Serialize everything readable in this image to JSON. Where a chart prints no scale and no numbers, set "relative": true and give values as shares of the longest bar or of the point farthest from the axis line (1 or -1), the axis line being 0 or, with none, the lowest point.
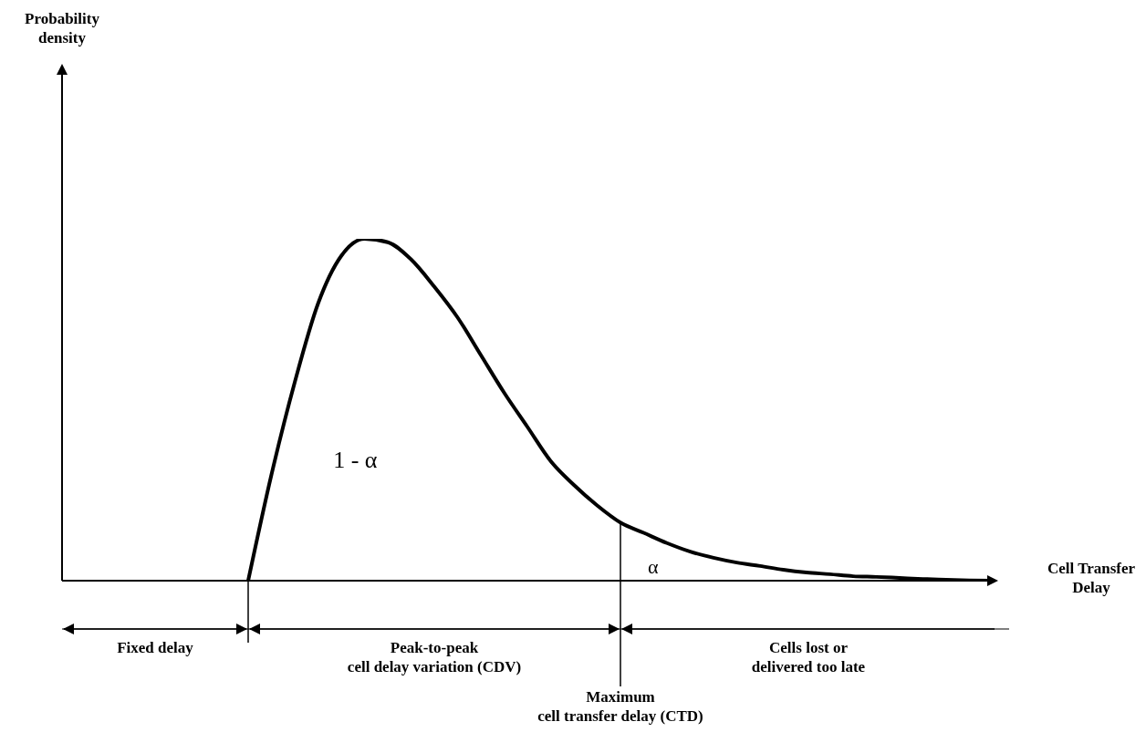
{
  "chart_data": {
    "type": "line",
    "relative": true,
    "xlabel": "Cell Transfer Delay",
    "categories": [
      null,
      null,
      null,
      null,
      null,
      null,
      null,
      null,
      null,
      null,
      null,
      null,
      null,
      null,
      null,
      null,
      null,
      null,
      null,
      null,
      null,
      null,
      null,
      null,
      null,
      null,
      null,
      null,
      null,
      null,
      null,
      null,
      null,
      null,
      null,
      null,
      null,
      null,
      null,
      null,
      null
    ],
    "series": [
      {
        "color": "#000000",
        "values": [
          null,
          null,
          null,
          null,
          null,
          null,
          null,
          null,
          0,
          0.31,
          0.58,
          0.81,
          0.95,
          1,
          0.99,
          0.94,
          0.86,
          0.77,
          0.66,
          0.55,
          0.45,
          0.35,
          0.28,
          0.22,
          0.17,
          0.14,
          0.11,
          0.085,
          0.067,
          0.053,
          0.043,
          0.032,
          0.024,
          0.019,
          0.013,
          0.011,
          0.008,
          0.005,
          0.003,
          0.001,
          0
        ]
      }
    ],
    "annotations": [
      "1 - α",
      "α",
      "Fixed delay",
      "Peak-to-peak\ncell delay variation (CDV)",
      "Cells lost or\ndelivered too late",
      "Maximum\ncell transfer delay (CTD)",
      "Probability\ndensity"
    ],
    "marker": "none",
    "line_style": "solid",
    "grid": false,
    "legend": false,
    "tick_labels": false
  }
}
